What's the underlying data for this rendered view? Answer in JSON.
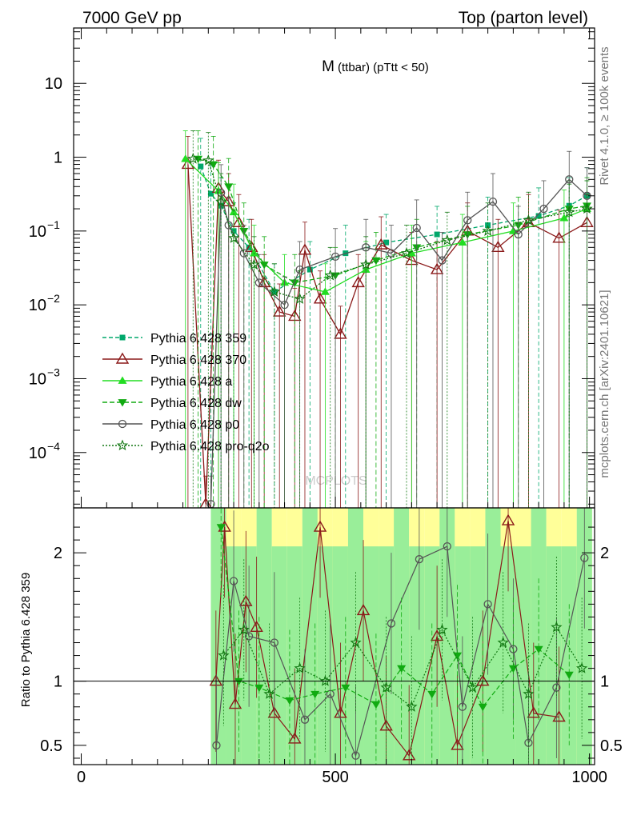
{
  "header": {
    "left": "7000 GeV pp",
    "right": "Top (parton level)"
  },
  "side_labels": {
    "rivet": "Rivet 4.1.0, ≥ 100k events",
    "mcplots": "mcplots.cern.ch [arXiv:2401.10621]"
  },
  "watermark": "MCPLOTS",
  "chart_data": {
    "type": "line",
    "title": "M",
    "subtitle": "(ttbar) (pTtt < 50)",
    "xlabel": "",
    "ylabel_main": "",
    "ylabel_ratio": "Ratio to Pythia 6.428 359",
    "xlim": [
      -15,
      1010
    ],
    "ylim_main_log10": [
      -4.75,
      1.75
    ],
    "ylim_ratio": [
      0.35,
      2.35
    ],
    "yscale_main": "log",
    "x_ticks": [
      0,
      500,
      1000
    ],
    "x_tick_labels": [
      "0",
      "500",
      "1000"
    ],
    "y_ticks_main_exp": [
      -4,
      -3,
      -2,
      -1,
      0,
      1
    ],
    "y_tick_labels_main": [
      {
        "base": "10",
        "exp": "−4"
      },
      {
        "base": "10",
        "exp": "−3"
      },
      {
        "base": "10",
        "exp": "−2"
      },
      {
        "base": "10",
        "exp": "−1"
      },
      {
        "base": "1",
        "exp": ""
      },
      {
        "base": "10",
        "exp": ""
      }
    ],
    "y_ticks_ratio": [
      0.5,
      1,
      2
    ],
    "y_tick_labels_ratio": [
      "0.5",
      "1",
      "2"
    ],
    "legend_position": "middle-left",
    "series": [
      {
        "name": "Pythia 6.428 359",
        "color": "#00a86b",
        "dash": "5,3",
        "marker": "square",
        "points": [
          [
            235,
            0.75
          ],
          [
            255,
            0.32
          ],
          [
            275,
            0.22
          ],
          [
            300,
            0.1
          ],
          [
            330,
            0.06
          ],
          [
            380,
            0.015
          ],
          [
            450,
            0.03
          ],
          [
            520,
            0.05
          ],
          [
            600,
            0.07
          ],
          [
            700,
            0.09
          ],
          [
            800,
            0.12
          ],
          [
            900,
            0.16
          ],
          [
            960,
            0.22
          ],
          [
            995,
            0.3
          ]
        ]
      },
      {
        "name": "Pythia 6.428 370",
        "color": "#8b1a1a",
        "dash": "",
        "marker": "triangle-open",
        "points": [
          [
            210,
            0.8
          ],
          [
            245,
            2e-05
          ],
          [
            270,
            0.38
          ],
          [
            290,
            0.25
          ],
          [
            310,
            0.13
          ],
          [
            335,
            0.06
          ],
          [
            360,
            0.02
          ],
          [
            390,
            0.008
          ],
          [
            420,
            0.007
          ],
          [
            440,
            0.055
          ],
          [
            470,
            0.012
          ],
          [
            510,
            0.004
          ],
          [
            545,
            0.02
          ],
          [
            590,
            0.065
          ],
          [
            650,
            0.04
          ],
          [
            700,
            0.03
          ],
          [
            760,
            0.1
          ],
          [
            820,
            0.06
          ],
          [
            880,
            0.13
          ],
          [
            940,
            0.08
          ],
          [
            995,
            0.13
          ]
        ]
      },
      {
        "name": "Pythia 6.428 a",
        "color": "#22dd22",
        "dash": "",
        "marker": "triangle",
        "points": [
          [
            205,
            0.95
          ],
          [
            270,
            0.35
          ],
          [
            300,
            0.18
          ],
          [
            340,
            0.05
          ],
          [
            400,
            0.02
          ],
          [
            480,
            0.015
          ],
          [
            560,
            0.03
          ],
          [
            650,
            0.05
          ],
          [
            750,
            0.07
          ],
          [
            850,
            0.1
          ],
          [
            950,
            0.15
          ],
          [
            995,
            0.2
          ]
        ]
      },
      {
        "name": "Pythia 6.428 dw",
        "color": "#11aa11",
        "dash": "6,3",
        "marker": "triangle-down",
        "points": [
          [
            230,
            0.95
          ],
          [
            260,
            0.8
          ],
          [
            290,
            0.4
          ],
          [
            320,
            0.1
          ],
          [
            360,
            0.035
          ],
          [
            420,
            0.02
          ],
          [
            500,
            0.025
          ],
          [
            580,
            0.04
          ],
          [
            660,
            0.06
          ],
          [
            760,
            0.09
          ],
          [
            860,
            0.12
          ],
          [
            960,
            0.2
          ],
          [
            995,
            0.22
          ]
        ]
      },
      {
        "name": "Pythia 6.428 p0",
        "color": "#555555",
        "dash": "",
        "marker": "circle-open",
        "points": [
          [
            255,
            2e-05
          ],
          [
            275,
            0.33
          ],
          [
            290,
            0.12
          ],
          [
            320,
            0.05
          ],
          [
            350,
            0.02
          ],
          [
            400,
            0.01
          ],
          [
            430,
            0.03
          ],
          [
            500,
            0.045
          ],
          [
            560,
            0.06
          ],
          [
            610,
            0.05
          ],
          [
            660,
            0.11
          ],
          [
            710,
            0.04
          ],
          [
            760,
            0.14
          ],
          [
            810,
            0.25
          ],
          [
            860,
            0.09
          ],
          [
            910,
            0.2
          ],
          [
            960,
            0.5
          ],
          [
            995,
            0.3
          ]
        ]
      },
      {
        "name": "Pythia 6.428 pro-q2o",
        "color": "#117711",
        "dash": "2,2",
        "marker": "star",
        "points": [
          [
            220,
            0.95
          ],
          [
            250,
            0.9
          ],
          [
            275,
            0.25
          ],
          [
            300,
            0.08
          ],
          [
            340,
            0.035
          ],
          [
            380,
            0.015
          ],
          [
            430,
            0.012
          ],
          [
            490,
            0.025
          ],
          [
            560,
            0.035
          ],
          [
            640,
            0.05
          ],
          [
            720,
            0.075
          ],
          [
            800,
            0.1
          ],
          [
            880,
            0.14
          ],
          [
            960,
            0.18
          ],
          [
            995,
            0.2
          ]
        ]
      }
    ],
    "ratio_series": [
      {
        "name": "Pythia 6.428 370",
        "points": [
          [
            265,
            1.0
          ],
          [
            282,
            2.2
          ],
          [
            303,
            0.82
          ],
          [
            324,
            1.62
          ],
          [
            345,
            1.42
          ],
          [
            380,
            0.75
          ],
          [
            420,
            0.55
          ],
          [
            470,
            2.2
          ],
          [
            510,
            0.75
          ],
          [
            555,
            1.55
          ],
          [
            600,
            0.65
          ],
          [
            645,
            0.42
          ],
          [
            700,
            1.35
          ],
          [
            740,
            0.5
          ],
          [
            790,
            1.0
          ],
          [
            840,
            2.25
          ],
          [
            890,
            0.75
          ],
          [
            940,
            0.72
          ]
        ]
      },
      {
        "name": "Pythia 6.428 p0",
        "points": [
          [
            266,
            0.5
          ],
          [
            300,
            1.78
          ],
          [
            330,
            1.35
          ],
          [
            380,
            1.3
          ],
          [
            440,
            0.7
          ],
          [
            490,
            0.9
          ],
          [
            540,
            0.42
          ],
          [
            610,
            1.45
          ],
          [
            665,
            1.95
          ],
          [
            720,
            2.05
          ],
          [
            750,
            0.8
          ],
          [
            800,
            1.6
          ],
          [
            850,
            1.25
          ],
          [
            880,
            0.52
          ],
          [
            935,
            0.95
          ],
          [
            990,
            1.96
          ]
        ]
      },
      {
        "name": "Pythia 6.428 dw",
        "points": [
          [
            275,
            2.2
          ],
          [
            310,
            1.0
          ],
          [
            350,
            0.95
          ],
          [
            410,
            0.85
          ],
          [
            460,
            0.9
          ],
          [
            520,
            0.95
          ],
          [
            580,
            0.82
          ],
          [
            630,
            1.1
          ],
          [
            690,
            0.9
          ],
          [
            740,
            1.2
          ],
          [
            790,
            0.8
          ],
          [
            850,
            1.1
          ],
          [
            900,
            1.25
          ],
          [
            960,
            1.05
          ]
        ]
      },
      {
        "name": "Pythia 6.428 pro-q2o",
        "points": [
          [
            280,
            1.2
          ],
          [
            320,
            1.4
          ],
          [
            370,
            0.9
          ],
          [
            430,
            1.1
          ],
          [
            480,
            1.0
          ],
          [
            540,
            1.3
          ],
          [
            600,
            0.95
          ],
          [
            650,
            0.8
          ],
          [
            710,
            1.4
          ],
          [
            770,
            0.95
          ],
          [
            830,
            1.3
          ],
          [
            880,
            0.9
          ],
          [
            935,
            1.42
          ],
          [
            985,
            1.1
          ]
        ]
      }
    ]
  }
}
